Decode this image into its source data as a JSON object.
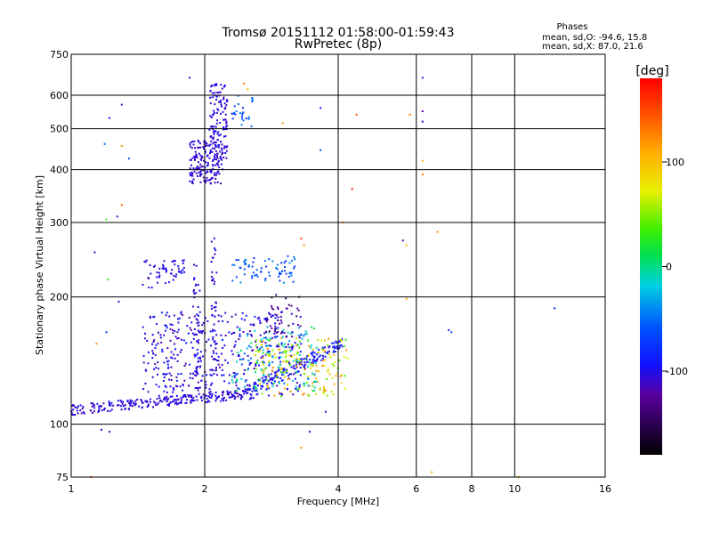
{
  "chart_data": {
    "type": "scatter",
    "title": "Tromsø 20151112 01:58:00-01:59:43",
    "subtitle": "RwPretec (8p)",
    "xlabel": "Frequency [MHz]",
    "ylabel": "Stationary phase Virtual Height [km]",
    "x_scale": "log",
    "y_scale": "log",
    "xlim": [
      1,
      16
    ],
    "ylim": [
      75,
      750
    ],
    "x_ticks": [
      1,
      2,
      4,
      6,
      8,
      10,
      16
    ],
    "y_ticks": [
      75,
      100,
      200,
      300,
      400,
      500,
      600,
      750
    ],
    "x_gridlines": [
      2,
      4,
      6,
      8,
      10
    ],
    "y_gridlines": [
      100,
      200,
      300,
      400,
      500,
      600
    ],
    "grid": true,
    "stats": {
      "title": "Phases",
      "line1": "mean, sd,O: -94.6, 15.8",
      "line2": "mean, sd,X:  87.0, 21.6"
    },
    "colorbar": {
      "label": "[deg]",
      "range": [
        -180,
        180
      ],
      "ticks": [
        100,
        0,
        -100
      ]
    },
    "clusters": [
      {
        "fmin": 1.0,
        "fmax": 2.5,
        "h0": 108,
        "h1": 118,
        "n": 240,
        "hjit": 3,
        "phase": [
          -115,
          -95
        ]
      },
      {
        "fmin": 2.5,
        "fmax": 4.1,
        "h0": 118,
        "h1": 155,
        "n": 160,
        "hjit": 5,
        "phase": [
          -110,
          -80
        ]
      },
      {
        "fmin": 1.45,
        "fmax": 3.3,
        "h0": 115,
        "h1": 185,
        "n": 420,
        "phase": [
          -120,
          -85
        ]
      },
      {
        "fmin": 2.6,
        "fmax": 4.2,
        "h0": 115,
        "h1": 160,
        "n": 180,
        "phase": [
          30,
          130
        ]
      },
      {
        "fmin": 2.3,
        "fmax": 3.6,
        "h0": 120,
        "h1": 170,
        "n": 130,
        "phase": [
          -60,
          20
        ]
      },
      {
        "fmin": 1.45,
        "fmax": 1.8,
        "h0": 210,
        "h1": 245,
        "n": 55,
        "phase": [
          -115,
          -95
        ]
      },
      {
        "fmin": 2.3,
        "fmax": 3.2,
        "h0": 215,
        "h1": 250,
        "n": 70,
        "phase": [
          -80,
          -40
        ]
      },
      {
        "fmin": 2.75,
        "fmax": 3.3,
        "h0": 160,
        "h1": 205,
        "n": 40,
        "phase": [
          -150,
          -110
        ]
      },
      {
        "fmin": 1.88,
        "fmax": 1.96,
        "h0": 130,
        "h1": 245,
        "n": 45,
        "phase": [
          -115,
          -95
        ]
      },
      {
        "fmin": 2.07,
        "fmax": 2.13,
        "h0": 130,
        "h1": 280,
        "n": 45,
        "phase": [
          -115,
          -95
        ]
      },
      {
        "fmin": 1.85,
        "fmax": 2.2,
        "h0": 370,
        "h1": 470,
        "n": 160,
        "phase": [
          -115,
          -95
        ]
      },
      {
        "fmin": 2.05,
        "fmax": 2.25,
        "h0": 420,
        "h1": 640,
        "n": 130,
        "phase": [
          -115,
          -95
        ]
      },
      {
        "fmin": 2.3,
        "fmax": 2.6,
        "h0": 500,
        "h1": 600,
        "n": 25,
        "phase": [
          -80,
          -40
        ]
      }
    ],
    "sparse_points": [
      {
        "x": 1.3,
        "y": 570,
        "phase": -100
      },
      {
        "x": 1.22,
        "y": 530,
        "phase": -90
      },
      {
        "x": 1.19,
        "y": 460,
        "phase": -50
      },
      {
        "x": 1.3,
        "y": 455,
        "phase": 120
      },
      {
        "x": 1.35,
        "y": 425,
        "phase": -60
      },
      {
        "x": 1.3,
        "y": 330,
        "phase": 140
      },
      {
        "x": 1.27,
        "y": 310,
        "phase": -110
      },
      {
        "x": 1.2,
        "y": 305,
        "phase": 30
      },
      {
        "x": 1.13,
        "y": 255,
        "phase": -110
      },
      {
        "x": 1.21,
        "y": 220,
        "phase": 30
      },
      {
        "x": 1.28,
        "y": 195,
        "phase": -110
      },
      {
        "x": 1.2,
        "y": 165,
        "phase": -80
      },
      {
        "x": 1.14,
        "y": 155,
        "phase": 120
      },
      {
        "x": 1.17,
        "y": 97,
        "phase": -110
      },
      {
        "x": 1.22,
        "y": 96,
        "phase": -110
      },
      {
        "x": 1.11,
        "y": 75,
        "phase": 150
      },
      {
        "x": 1.85,
        "y": 660,
        "phase": -110
      },
      {
        "x": 3.65,
        "y": 560,
        "phase": -90
      },
      {
        "x": 3.65,
        "y": 445,
        "phase": -60
      },
      {
        "x": 4.4,
        "y": 540,
        "phase": 150
      },
      {
        "x": 5.8,
        "y": 540,
        "phase": 130
      },
      {
        "x": 4.3,
        "y": 360,
        "phase": 170
      },
      {
        "x": 6.2,
        "y": 660,
        "phase": -110
      },
      {
        "x": 6.2,
        "y": 550,
        "phase": -120
      },
      {
        "x": 6.2,
        "y": 520,
        "phase": -110
      },
      {
        "x": 6.2,
        "y": 420,
        "phase": 110
      },
      {
        "x": 6.2,
        "y": 390,
        "phase": 130
      },
      {
        "x": 5.6,
        "y": 272,
        "phase": -120
      },
      {
        "x": 5.7,
        "y": 265,
        "phase": 110
      },
      {
        "x": 6.7,
        "y": 285,
        "phase": 120
      },
      {
        "x": 5.7,
        "y": 198,
        "phase": 110
      },
      {
        "x": 7.1,
        "y": 167,
        "phase": -100
      },
      {
        "x": 7.2,
        "y": 165,
        "phase": -60
      },
      {
        "x": 12.3,
        "y": 188,
        "phase": -80
      },
      {
        "x": 4.1,
        "y": 300,
        "phase": 110
      },
      {
        "x": 3.3,
        "y": 275,
        "phase": 150
      },
      {
        "x": 3.35,
        "y": 265,
        "phase": 120
      },
      {
        "x": 3.3,
        "y": 88,
        "phase": 120
      },
      {
        "x": 3.45,
        "y": 96,
        "phase": -100
      },
      {
        "x": 3.75,
        "y": 107,
        "phase": -110
      },
      {
        "x": 6.5,
        "y": 77,
        "phase": 110
      },
      {
        "x": 10.2,
        "y": 75,
        "phase": 100
      },
      {
        "x": 3.0,
        "y": 515,
        "phase": 120
      },
      {
        "x": 2.45,
        "y": 640,
        "phase": 130
      },
      {
        "x": 2.5,
        "y": 620,
        "phase": 110
      }
    ]
  }
}
